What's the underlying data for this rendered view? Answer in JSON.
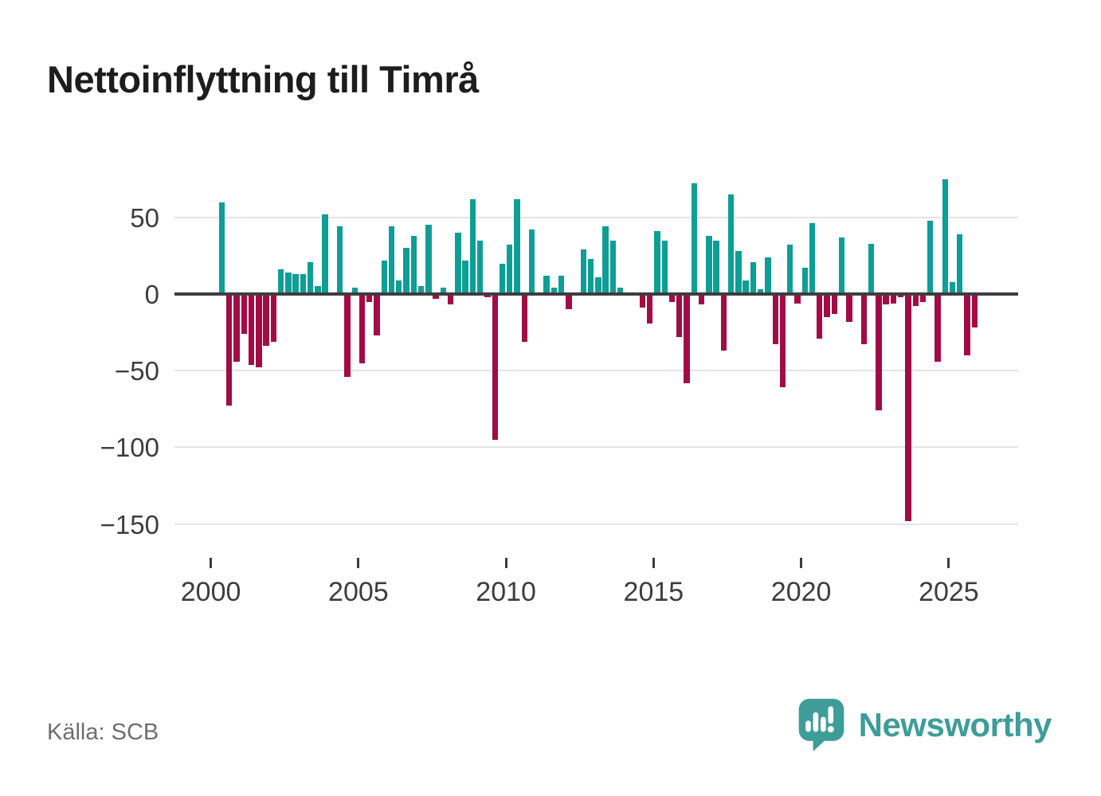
{
  "title": "Nettoinflyttning till Timrå",
  "source_label": "Källa: SCB",
  "branding": {
    "name": "Newsworthy",
    "color": "#3e9d98"
  },
  "colors": {
    "positive": "#0e9e96",
    "negative": "#a30b45",
    "title_text": "#1d1d1d",
    "axis_text": "#3d3d3d",
    "grid": "#e4e4e4",
    "zero_line": "#3d3d3d",
    "source_text": "#6e6e6e",
    "background": "#ffffff"
  },
  "chart_data": {
    "type": "bar",
    "title": "Nettoinflyttning till Timrå",
    "period": "quarterly",
    "xlabel": "",
    "ylabel": "",
    "grid": true,
    "legend": "none",
    "source": "SCB",
    "ylim": [
      -160,
      80
    ],
    "ytick_values": [
      50,
      0,
      -50,
      -100,
      -150
    ],
    "ytick_labels": [
      "50",
      "0",
      "−50",
      "−100",
      "−150"
    ],
    "xtick_years": [
      2000,
      2005,
      2010,
      2015,
      2020,
      2025
    ],
    "xtick_labels": [
      "2000",
      "2005",
      "2010",
      "2015",
      "2020",
      "2025"
    ],
    "categories": [
      "2000 Q1",
      "2000 Q2",
      "2000 Q3",
      "2000 Q4",
      "2001 Q1",
      "2001 Q2",
      "2001 Q3",
      "2001 Q4",
      "2002 Q1",
      "2002 Q2",
      "2002 Q3",
      "2002 Q4",
      "2003 Q1",
      "2003 Q2",
      "2003 Q3",
      "2003 Q4",
      "2004 Q1",
      "2004 Q2",
      "2004 Q3",
      "2004 Q4",
      "2005 Q1",
      "2005 Q2",
      "2005 Q3",
      "2005 Q4",
      "2006 Q1",
      "2006 Q2",
      "2006 Q3",
      "2006 Q4",
      "2007 Q1",
      "2007 Q2",
      "2007 Q3",
      "2007 Q4",
      "2008 Q1",
      "2008 Q2",
      "2008 Q3",
      "2008 Q4",
      "2009 Q1",
      "2009 Q2",
      "2009 Q3",
      "2009 Q4",
      "2010 Q1",
      "2010 Q2",
      "2010 Q3",
      "2010 Q4",
      "2011 Q1",
      "2011 Q2",
      "2011 Q3",
      "2011 Q4",
      "2012 Q1",
      "2012 Q2",
      "2012 Q3",
      "2012 Q4",
      "2013 Q1",
      "2013 Q2",
      "2013 Q3",
      "2013 Q4",
      "2014 Q1",
      "2014 Q2",
      "2014 Q3",
      "2014 Q4",
      "2015 Q1",
      "2015 Q2",
      "2015 Q3",
      "2015 Q4",
      "2016 Q1",
      "2016 Q2",
      "2016 Q3",
      "2016 Q4",
      "2017 Q1",
      "2017 Q2",
      "2017 Q3",
      "2017 Q4",
      "2018 Q1",
      "2018 Q2",
      "2018 Q3",
      "2018 Q4",
      "2019 Q1",
      "2019 Q2",
      "2019 Q3",
      "2019 Q4",
      "2020 Q1",
      "2020 Q2",
      "2020 Q3",
      "2020 Q4",
      "2021 Q1",
      "2021 Q2",
      "2021 Q3",
      "2021 Q4",
      "2022 Q1",
      "2022 Q2",
      "2022 Q3",
      "2022 Q4",
      "2023 Q1",
      "2023 Q2",
      "2023 Q3",
      "2023 Q4",
      "2024 Q1",
      "2024 Q2",
      "2024 Q3",
      "2024 Q4",
      "2025 Q1",
      "2025 Q2",
      "2025 Q3",
      "2025 Q4"
    ],
    "values": [
      0,
      60,
      -73,
      -44,
      -26,
      -46,
      -48,
      -34,
      -31,
      16,
      14,
      13,
      13,
      21,
      5,
      52,
      0,
      44,
      -54,
      4,
      -45,
      -5,
      -27,
      22,
      44,
      9,
      30,
      38,
      5,
      45,
      -3,
      4,
      -7,
      40,
      22,
      62,
      35,
      -2,
      -95,
      20,
      32,
      62,
      -31,
      42,
      0,
      12,
      4,
      12,
      -10,
      0,
      29,
      23,
      11,
      44,
      35,
      4,
      0,
      0,
      -9,
      -19,
      41,
      35,
      -5,
      -28,
      -58,
      72,
      -7,
      38,
      35,
      -37,
      65,
      28,
      9,
      21,
      3,
      24,
      -33,
      -61,
      32,
      -6,
      17,
      46,
      -29,
      -15,
      -13,
      37,
      -18,
      0,
      -33,
      33,
      -76,
      -7,
      -6,
      -2,
      -148,
      -8,
      -5,
      48,
      -44,
      75,
      8,
      39,
      -40,
      -22
    ]
  }
}
